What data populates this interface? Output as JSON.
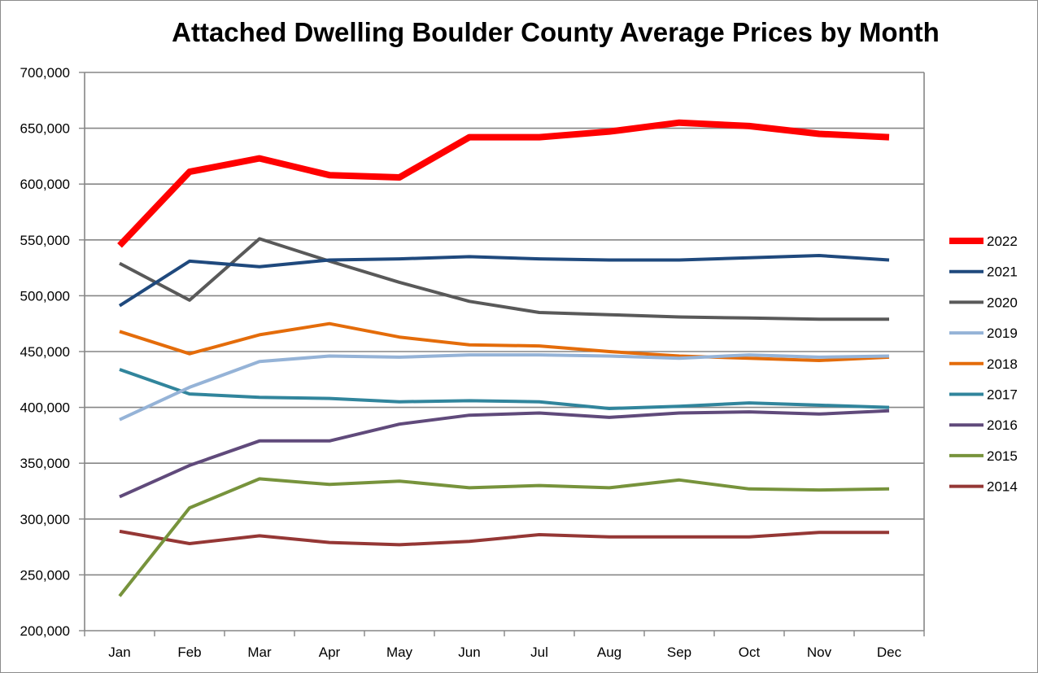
{
  "chart_data": {
    "type": "line",
    "title": "Attached Dwelling Boulder County Average Prices by Month",
    "xlabel": "",
    "ylabel": "",
    "ylim": [
      200000,
      700000
    ],
    "y_ticks": [
      200000,
      250000,
      300000,
      350000,
      400000,
      450000,
      500000,
      550000,
      600000,
      650000,
      700000
    ],
    "y_tick_labels": [
      "200,000",
      "250,000",
      "300,000",
      "350,000",
      "400,000",
      "450,000",
      "500,000",
      "550,000",
      "600,000",
      "650,000",
      "700,000"
    ],
    "grid": true,
    "legend_position": "right",
    "categories": [
      "Jan",
      "Feb",
      "Mar",
      "Apr",
      "May",
      "Jun",
      "Jul",
      "Aug",
      "Sep",
      "Oct",
      "Nov",
      "Dec"
    ],
    "series": [
      {
        "name": "2022",
        "color": "#ff0000",
        "emphasis": true,
        "values": [
          545000,
          611000,
          623000,
          608000,
          606000,
          642000,
          642000,
          647000,
          655000,
          652000,
          645000,
          642000
        ]
      },
      {
        "name": "2021",
        "color": "#1f497d",
        "values": [
          491000,
          531000,
          526000,
          532000,
          533000,
          535000,
          533000,
          532000,
          532000,
          534000,
          536000,
          532000
        ]
      },
      {
        "name": "2020",
        "color": "#595959",
        "values": [
          529000,
          496000,
          551000,
          531000,
          512000,
          495000,
          485000,
          483000,
          481000,
          480000,
          479000,
          479000
        ]
      },
      {
        "name": "2019",
        "color": "#95b3d7",
        "values": [
          389000,
          418000,
          441000,
          446000,
          445000,
          447000,
          447000,
          446000,
          444000,
          447000,
          445000,
          446000
        ]
      },
      {
        "name": "2018",
        "color": "#e46c0a",
        "values": [
          468000,
          448000,
          465000,
          475000,
          463000,
          456000,
          455000,
          450000,
          446000,
          444000,
          442000,
          445000
        ]
      },
      {
        "name": "2017",
        "color": "#31859c",
        "values": [
          434000,
          412000,
          409000,
          408000,
          405000,
          406000,
          405000,
          399000,
          401000,
          404000,
          402000,
          400000
        ]
      },
      {
        "name": "2016",
        "color": "#604a7b",
        "values": [
          320000,
          348000,
          370000,
          370000,
          385000,
          393000,
          395000,
          391000,
          395000,
          396000,
          394000,
          397000
        ]
      },
      {
        "name": "2015",
        "color": "#77933c",
        "values": [
          231000,
          310000,
          336000,
          331000,
          334000,
          328000,
          330000,
          328000,
          335000,
          327000,
          326000,
          327000
        ]
      },
      {
        "name": "2014",
        "color": "#953735",
        "values": [
          289000,
          278000,
          285000,
          279000,
          277000,
          280000,
          286000,
          284000,
          284000,
          284000,
          288000,
          288000
        ]
      }
    ]
  }
}
